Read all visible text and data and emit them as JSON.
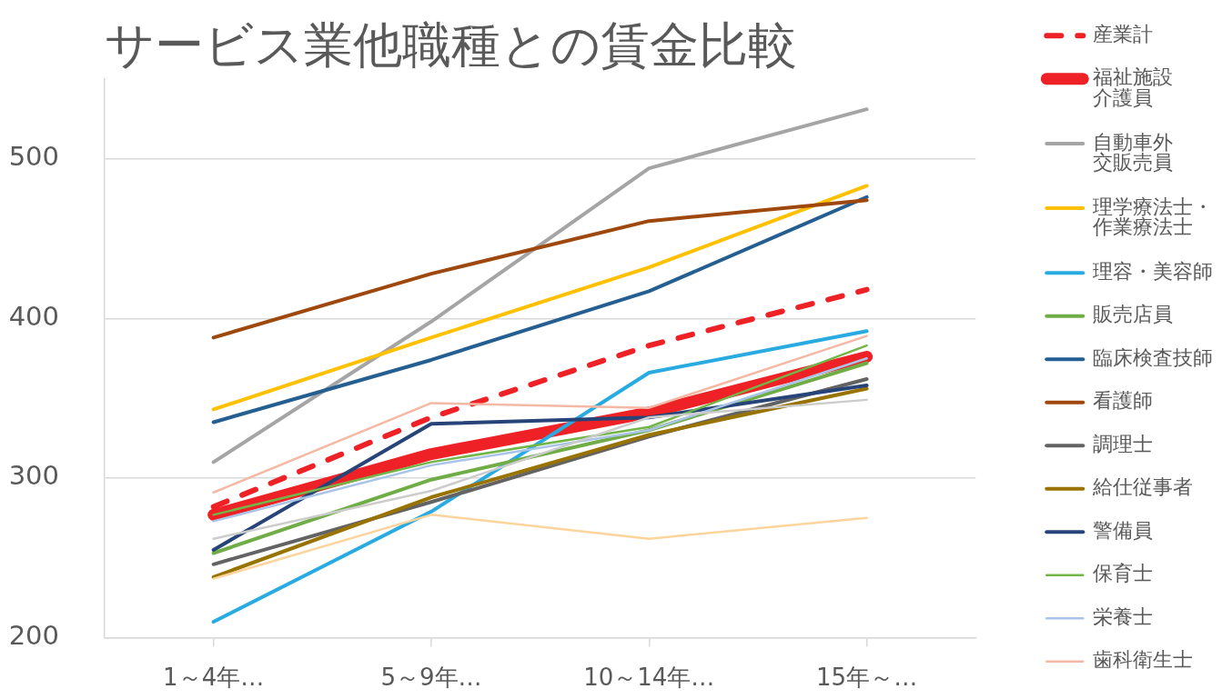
{
  "chart_data": {
    "type": "line",
    "title": "サービス業他職種との賃金比較",
    "categories": [
      "1～4年…",
      "5～9年…",
      "10～14年…",
      "15年～…"
    ],
    "series": [
      {
        "name": "産業計",
        "color": "#ee2226",
        "line_style": "dashed",
        "values": [
          282,
          338,
          383,
          418
        ]
      },
      {
        "name": "福祉施設介護員",
        "color": "#ee2226",
        "values": [
          277,
          315,
          341,
          376
        ]
      },
      {
        "name": "自動車外交販売員",
        "color": "#a5a5a5",
        "values": [
          310,
          398,
          494,
          531
        ]
      },
      {
        "name": "理学療法士・作業療法士",
        "color": "#ffc000",
        "values": [
          343,
          388,
          432,
          483
        ]
      },
      {
        "name": "理容・美容師",
        "color": "#29abe2",
        "values": [
          210,
          279,
          366,
          392
        ]
      },
      {
        "name": "販売店員",
        "color": "#70ad47",
        "values": [
          253,
          299,
          330,
          372
        ]
      },
      {
        "name": "臨床検査技師",
        "color": "#255e91",
        "values": [
          335,
          374,
          417,
          476
        ]
      },
      {
        "name": "看護師",
        "color": "#9e480e",
        "values": [
          388,
          428,
          461,
          474
        ]
      },
      {
        "name": "調理士",
        "color": "#636363",
        "values": [
          246,
          285,
          326,
          362
        ]
      },
      {
        "name": "給仕従事者",
        "color": "#997300",
        "values": [
          238,
          288,
          327,
          356
        ]
      },
      {
        "name": "警備員",
        "color": "#264478",
        "values": [
          255,
          334,
          338,
          358
        ]
      },
      {
        "name": "保育士",
        "color": "#72b548",
        "values": [
          277,
          310,
          332,
          383
        ]
      },
      {
        "name": "栄養士",
        "color": "#a9c4e8",
        "values": [
          273,
          308,
          330,
          375
        ]
      },
      {
        "name": "歯科衛生士",
        "color": "#f4b8a4",
        "values": [
          291,
          347,
          344,
          389
        ]
      },
      {
        "color": "#cccccc",
        "values": [
          262,
          292,
          338,
          349
        ]
      },
      {
        "color": "#fdd49c",
        "values": [
          237,
          277,
          262,
          275
        ]
      }
    ],
    "ylim": [
      200,
      550
    ],
    "yticks": [
      200,
      300,
      400,
      500
    ],
    "grid": "y",
    "legend": "right"
  }
}
